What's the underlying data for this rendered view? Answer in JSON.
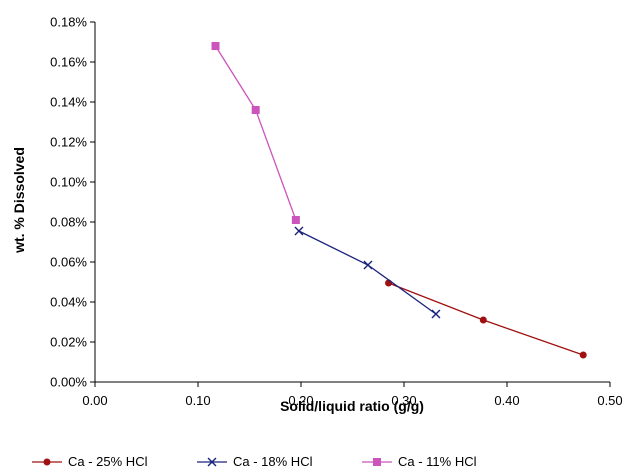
{
  "chart_data": {
    "type": "line",
    "title": "",
    "xlabel": "Solid/liquid ratio (g/g)",
    "ylabel": "wt. % Dissolved",
    "xlim": [
      0,
      0.5
    ],
    "ylim": [
      0,
      0.18
    ],
    "x_ticks": [
      "0.00",
      "0.10",
      "0.20",
      "0.30",
      "0.40",
      "0.50"
    ],
    "y_ticks": [
      "0.00%",
      "0.02%",
      "0.04%",
      "0.06%",
      "0.08%",
      "0.10%",
      "0.12%",
      "0.14%",
      "0.16%",
      "0.18%"
    ],
    "grid": false,
    "legend_position": "bottom",
    "series": [
      {
        "name": "Ca - 25% HCl",
        "color": "#a01010",
        "marker": "circle",
        "points": [
          {
            "x": 0.285,
            "y": 0.0495
          },
          {
            "x": 0.377,
            "y": 0.031
          },
          {
            "x": 0.474,
            "y": 0.0135
          }
        ]
      },
      {
        "name": "Ca - 18% HCl",
        "color": "#1a237e",
        "marker": "x",
        "points": [
          {
            "x": 0.198,
            "y": 0.0755
          },
          {
            "x": 0.265,
            "y": 0.0585
          },
          {
            "x": 0.331,
            "y": 0.034
          }
        ]
      },
      {
        "name": "Ca - 11% HCl",
        "color": "#cc55bb",
        "marker": "square",
        "points": [
          {
            "x": 0.117,
            "y": 0.168
          },
          {
            "x": 0.156,
            "y": 0.136
          },
          {
            "x": 0.195,
            "y": 0.081
          }
        ]
      }
    ]
  }
}
